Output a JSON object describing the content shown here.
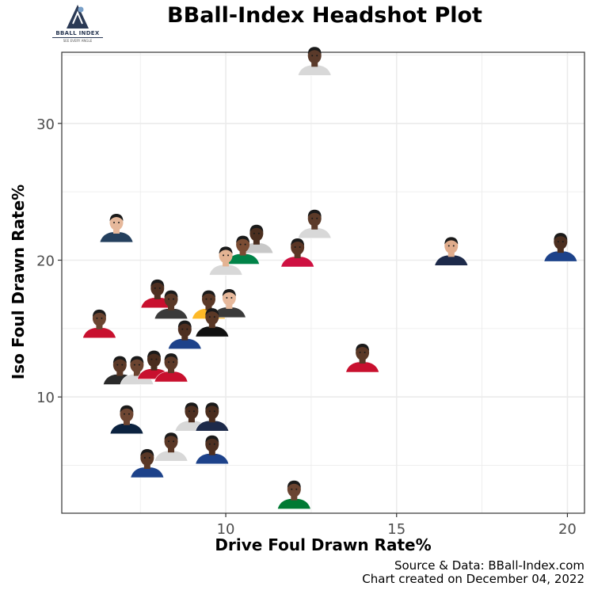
{
  "logo": {
    "name": "BBALL INDEX",
    "tagline": "SEE EVERY ANGLE"
  },
  "caption": {
    "source": "Source & Data: BBall-Index.com",
    "created": "Chart created on December 04, 2022"
  },
  "colors": {
    "grid": "#ebebeb",
    "border": "#333333",
    "logo": "#2b3a55"
  },
  "chart_data": {
    "type": "scatter",
    "title": "BBall-Index Headshot Plot",
    "xlabel": "Drive Foul Drawn Rate%",
    "ylabel": "Iso Foul Drawn Rate%",
    "xlim": [
      5.2,
      20.5
    ],
    "ylim": [
      1.5,
      35.2
    ],
    "xticks": [
      10,
      15,
      20
    ],
    "yticks": [
      10,
      20,
      30
    ],
    "grid": true,
    "marker": "player-headshot",
    "points": [
      {
        "x": 12.6,
        "y": 34.2,
        "skin": "#5a3a2a",
        "jersey": "#d8d8d8"
      },
      {
        "x": 6.8,
        "y": 22.0,
        "skin": "#e6b89b",
        "jersey": "#24405e"
      },
      {
        "x": 12.6,
        "y": 22.3,
        "skin": "#5c3b29",
        "jersey": "#d8d8d8"
      },
      {
        "x": 10.9,
        "y": 21.2,
        "skin": "#4b2e1f",
        "jersey": "#c8c8c8"
      },
      {
        "x": 10.5,
        "y": 20.4,
        "skin": "#7a4c33",
        "jersey": "#008348"
      },
      {
        "x": 12.1,
        "y": 20.2,
        "skin": "#5b3625",
        "jersey": "#ce1141"
      },
      {
        "x": 10.0,
        "y": 19.6,
        "skin": "#e3b393",
        "jersey": "#d8d8d8"
      },
      {
        "x": 16.6,
        "y": 20.3,
        "skin": "#e0ac8c",
        "jersey": "#1d2a4a"
      },
      {
        "x": 19.8,
        "y": 20.6,
        "skin": "#4c2f20",
        "jersey": "#1d428a"
      },
      {
        "x": 8.0,
        "y": 17.2,
        "skin": "#4e2f20",
        "jersey": "#c8102e"
      },
      {
        "x": 8.4,
        "y": 16.4,
        "skin": "#5a3826",
        "jersey": "#3a3a3a"
      },
      {
        "x": 9.5,
        "y": 16.4,
        "skin": "#5b3826",
        "jersey": "#fdb927"
      },
      {
        "x": 10.1,
        "y": 16.5,
        "skin": "#e6b89b",
        "jersey": "#3a3a3a"
      },
      {
        "x": 9.6,
        "y": 15.1,
        "skin": "#5a3826",
        "jersey": "#111111"
      },
      {
        "x": 6.3,
        "y": 15.0,
        "skin": "#6b4430",
        "jersey": "#c8102e"
      },
      {
        "x": 8.8,
        "y": 14.2,
        "skin": "#4e2f20",
        "jersey": "#1d428a"
      },
      {
        "x": 14.0,
        "y": 12.5,
        "skin": "#5a3826",
        "jersey": "#c8102e"
      },
      {
        "x": 6.9,
        "y": 11.6,
        "skin": "#5b3826",
        "jersey": "#2a2a2a"
      },
      {
        "x": 7.4,
        "y": 11.6,
        "skin": "#6b4430",
        "jersey": "#d8d8d8"
      },
      {
        "x": 7.9,
        "y": 12.0,
        "skin": "#4a2d1e",
        "jersey": "#c8102e"
      },
      {
        "x": 8.4,
        "y": 11.8,
        "skin": "#5d3a28",
        "jersey": "#c8102e"
      },
      {
        "x": 7.1,
        "y": 8.0,
        "skin": "#6e4632",
        "jersey": "#0c2340"
      },
      {
        "x": 9.0,
        "y": 8.2,
        "skin": "#4e2f20",
        "jersey": "#d8d8d8"
      },
      {
        "x": 9.6,
        "y": 8.2,
        "skin": "#4a2d1e",
        "jersey": "#1d2a4a"
      },
      {
        "x": 8.4,
        "y": 6.0,
        "skin": "#5b3826",
        "jersey": "#d8d8d8"
      },
      {
        "x": 9.6,
        "y": 5.8,
        "skin": "#4e2f20",
        "jersey": "#1d428a"
      },
      {
        "x": 7.7,
        "y": 4.8,
        "skin": "#5a3826",
        "jersey": "#1d428a"
      },
      {
        "x": 12.0,
        "y": 2.5,
        "skin": "#6a4431",
        "jersey": "#007a33"
      }
    ]
  }
}
